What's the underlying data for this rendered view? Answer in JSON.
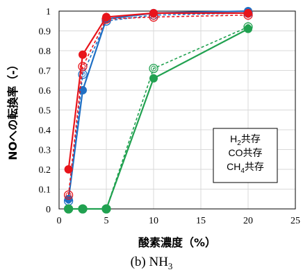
{
  "chart_data": {
    "type": "line",
    "xlabel": "酸素濃度（%）",
    "ylabel": "NOへの転換率（-）",
    "xlim": [
      0,
      25
    ],
    "ylim": [
      0,
      1
    ],
    "xticks": [
      0,
      5,
      10,
      15,
      20,
      25
    ],
    "xtick_labels": [
      "0",
      "5",
      "10",
      "15",
      "20",
      "25"
    ],
    "yticks": [
      0,
      0.1,
      0.2,
      0.3,
      0.4,
      0.5,
      0.6,
      0.7,
      0.8,
      0.9,
      1
    ],
    "ytick_labels": [
      "0",
      "0.1",
      "0.2",
      "0.3",
      "0.4",
      "0.5",
      "0.6",
      "0.7",
      "0.8",
      "0.9",
      "1"
    ],
    "grid": true,
    "legend": {
      "placement": "right-center",
      "entries": [
        {
          "base": "H",
          "sub": "2",
          "suffix": "共存"
        },
        {
          "base": "CO",
          "sub": "",
          "suffix": "共存"
        },
        {
          "base": "CH",
          "sub": "4",
          "suffix": "共存"
        }
      ]
    },
    "series": [
      {
        "color": "#1f6fc4",
        "style": "solid",
        "marker": "filled",
        "x": [
          1,
          2.5,
          5,
          10,
          20
        ],
        "y": [
          0.05,
          0.6,
          0.96,
          0.99,
          1.0
        ]
      },
      {
        "color": "#1f6fc4",
        "style": "dashed",
        "marker": "open",
        "x": [
          1,
          2.5,
          5,
          10,
          20
        ],
        "y": [
          0.04,
          0.68,
          0.95,
          0.98,
          0.99
        ]
      },
      {
        "color": "#21a150",
        "style": "solid",
        "marker": "filled",
        "x": [
          1,
          2.5,
          5,
          10,
          20
        ],
        "y": [
          0.0,
          0.0,
          0.0,
          0.66,
          0.91
        ]
      },
      {
        "color": "#21a150",
        "style": "dashed",
        "marker": "open",
        "x": [
          1,
          2.5,
          5,
          10,
          20
        ],
        "y": [
          0.0,
          0.0,
          0.0,
          0.71,
          0.92
        ]
      },
      {
        "color": "#e8141b",
        "style": "solid",
        "marker": "filled",
        "x": [
          1,
          2.5,
          5,
          10,
          20
        ],
        "y": [
          0.2,
          0.78,
          0.97,
          0.99,
          0.99
        ]
      },
      {
        "color": "#e8141b",
        "style": "dashed",
        "marker": "open",
        "x": [
          1,
          2.5,
          5,
          10,
          20
        ],
        "y": [
          0.07,
          0.72,
          0.96,
          0.97,
          0.98
        ]
      }
    ]
  },
  "caption": {
    "prefix": "(b) NH",
    "sub": "3"
  }
}
